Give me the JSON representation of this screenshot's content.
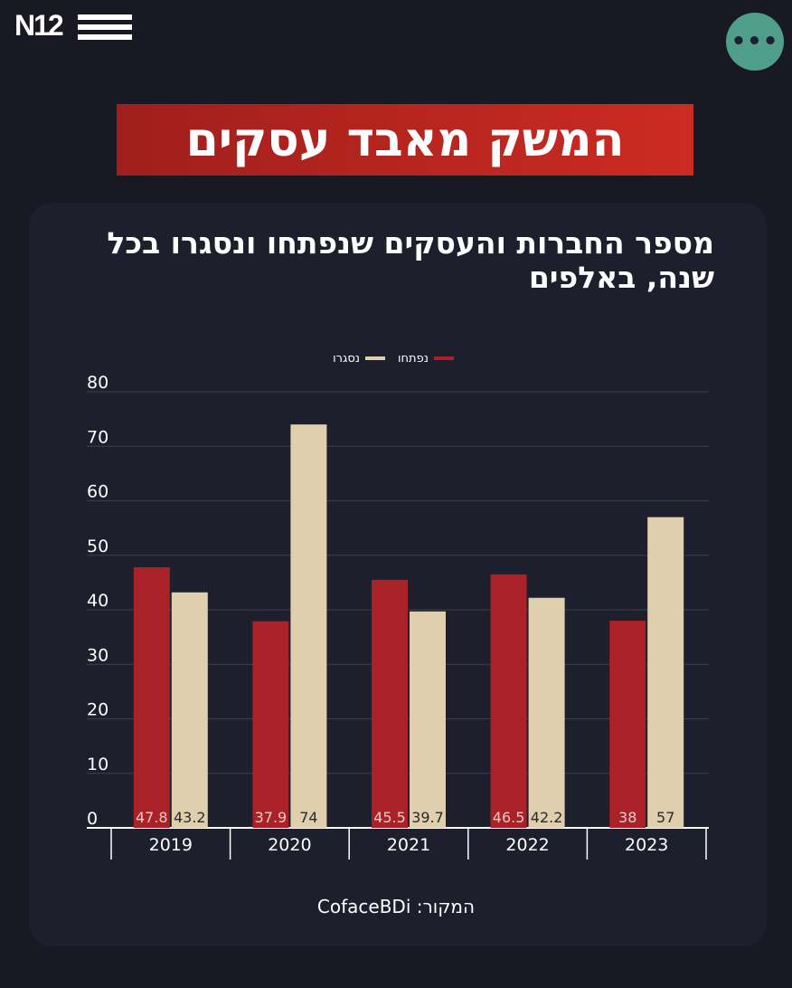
{
  "header": {
    "logo_text": "N12",
    "menu_icon": "more-dots-icon",
    "menu_label": "•••"
  },
  "banner": {
    "title": "המשק מאבד עסקים"
  },
  "chart_data": {
    "type": "bar",
    "title": "מספר החברות והעסקים שנפתחו ונסגרו בכל שנה, באלפים",
    "categories": [
      "2019",
      "2020",
      "2021",
      "2022",
      "2023"
    ],
    "series": [
      {
        "name": "נפתחו",
        "color": "#aa2227",
        "label_color": "#e9c9c9",
        "values": [
          47.8,
          37.9,
          45.5,
          46.5,
          38
        ]
      },
      {
        "name": "נסגרו",
        "color": "#dfcfad",
        "label_color": "#2a2a2a",
        "values": [
          43.2,
          74,
          39.7,
          42.2,
          57
        ]
      }
    ],
    "ylim": [
      0,
      80
    ],
    "yticks": [
      0,
      10,
      20,
      30,
      40,
      50,
      60,
      70,
      80
    ],
    "grid": true,
    "legend": "top-center",
    "xlabel": "",
    "ylabel": ""
  },
  "source": {
    "text": "המקור: CofaceBDi"
  }
}
